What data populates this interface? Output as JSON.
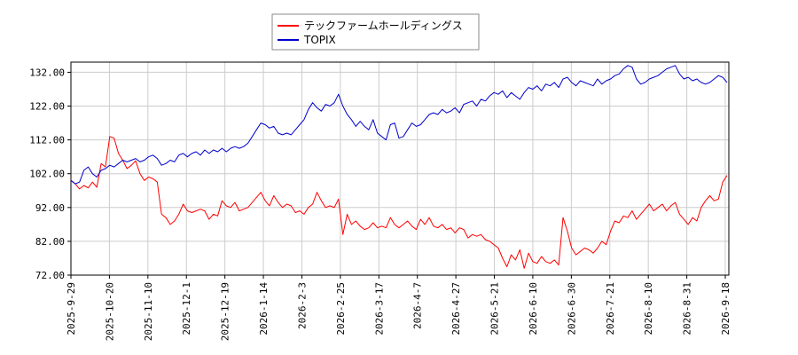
{
  "chart_data": {
    "type": "line",
    "title": "",
    "xlabel": "",
    "ylabel": "",
    "ylim": [
      72,
      135
    ],
    "grid": true,
    "legend_position": "top",
    "y_ticks": [
      "132.00",
      "122.00",
      "112.00",
      "102.00",
      "92.00",
      "82.00",
      "72.00"
    ],
    "x_ticks": [
      "2025-9-29",
      "2025-10-20",
      "2025-11-10",
      "2025-12-1",
      "2025-12-19",
      "2026-1-14",
      "2026-2-3",
      "2026-2-25",
      "2026-3-17",
      "2026-4-7",
      "2026-4-27",
      "2026-5-21",
      "2026-6-10",
      "2026-6-30",
      "2026-7-21",
      "2026-8-10",
      "2026-8-31",
      "2026-9-18"
    ],
    "series": [
      {
        "name": "テックファームホールディングス",
        "color": "#ff0000",
        "values": [
          100.0,
          99.0,
          97.5,
          98.5,
          97.8,
          99.5,
          98.0,
          105.0,
          104.0,
          113.0,
          112.5,
          108.0,
          106.0,
          103.5,
          104.5,
          105.8,
          102.0,
          100.0,
          101.0,
          100.5,
          99.5,
          90.0,
          89.0,
          87.0,
          88.0,
          90.0,
          93.0,
          91.0,
          90.5,
          91.0,
          91.5,
          91.0,
          88.5,
          90.0,
          89.5,
          94.0,
          92.5,
          92.0,
          93.5,
          91.0,
          91.5,
          92.0,
          93.5,
          95.0,
          96.5,
          94.0,
          92.5,
          95.5,
          93.5,
          92.0,
          93.0,
          92.5,
          90.5,
          91.0,
          90.0,
          92.0,
          93.0,
          96.5,
          94.0,
          92.0,
          92.5,
          92.0,
          94.5,
          84.0,
          90.0,
          87.0,
          88.0,
          86.5,
          85.5,
          86.0,
          87.5,
          86.0,
          86.5,
          86.0,
          89.0,
          87.0,
          86.0,
          87.0,
          88.0,
          86.5,
          85.5,
          88.5,
          87.0,
          89.0,
          86.5,
          86.0,
          87.0,
          85.5,
          86.0,
          84.5,
          86.0,
          85.5,
          83.0,
          84.0,
          83.5,
          84.0,
          82.5,
          82.0,
          81.0,
          80.0,
          77.0,
          74.5,
          78.0,
          76.5,
          79.5,
          74.0,
          78.5,
          76.0,
          75.5,
          77.5,
          76.0,
          75.5,
          76.5,
          75.0,
          89.0,
          85.0,
          80.0,
          78.0,
          79.0,
          80.0,
          79.5,
          78.5,
          80.0,
          82.0,
          81.0,
          85.0,
          88.0,
          87.5,
          89.5,
          89.0,
          91.0,
          88.5,
          90.0,
          91.5,
          93.0,
          91.0,
          92.0,
          93.0,
          91.0,
          92.5,
          93.5,
          90.0,
          88.5,
          87.0,
          89.0,
          88.0,
          92.0,
          94.0,
          95.5,
          94.0,
          94.5,
          99.5,
          101.5
        ]
      },
      {
        "name": "TOPIX",
        "color": "#0000cc",
        "values": [
          100.0,
          99.0,
          99.5,
          103.0,
          104.0,
          102.0,
          101.0,
          103.0,
          103.5,
          104.5,
          104.0,
          105.0,
          106.0,
          105.5,
          106.0,
          106.5,
          105.5,
          106.0,
          107.0,
          107.5,
          106.5,
          104.5,
          105.0,
          106.0,
          105.5,
          107.5,
          108.0,
          107.0,
          108.0,
          108.5,
          107.5,
          109.0,
          108.0,
          109.0,
          108.5,
          109.5,
          108.5,
          109.5,
          110.0,
          109.5,
          110.0,
          111.0,
          113.0,
          115.0,
          117.0,
          116.5,
          115.5,
          116.0,
          114.0,
          113.5,
          114.0,
          113.5,
          115.0,
          116.5,
          118.0,
          121.0,
          123.0,
          121.5,
          120.5,
          122.5,
          122.0,
          123.0,
          125.5,
          122.0,
          119.5,
          118.0,
          116.0,
          117.5,
          116.0,
          115.0,
          118.0,
          114.0,
          113.0,
          112.0,
          116.5,
          117.0,
          112.5,
          113.0,
          115.0,
          117.0,
          116.0,
          116.5,
          118.0,
          119.5,
          120.0,
          119.5,
          121.0,
          120.0,
          120.5,
          121.5,
          120.0,
          122.5,
          123.0,
          123.5,
          122.0,
          124.0,
          123.5,
          125.0,
          126.0,
          125.5,
          126.5,
          124.5,
          126.0,
          125.0,
          124.0,
          126.0,
          127.5,
          127.0,
          128.0,
          126.5,
          128.5,
          128.0,
          129.0,
          127.5,
          130.0,
          130.5,
          129.0,
          128.0,
          129.5,
          129.0,
          128.5,
          128.0,
          130.0,
          128.5,
          129.5,
          130.0,
          131.0,
          131.5,
          133.0,
          134.0,
          133.5,
          130.0,
          128.5,
          129.0,
          130.0,
          130.5,
          131.0,
          132.0,
          133.0,
          133.5,
          134.0,
          131.5,
          130.0,
          130.5,
          129.5,
          130.0,
          129.0,
          128.5,
          129.0,
          130.0,
          131.0,
          130.5,
          129.0
        ]
      }
    ]
  }
}
